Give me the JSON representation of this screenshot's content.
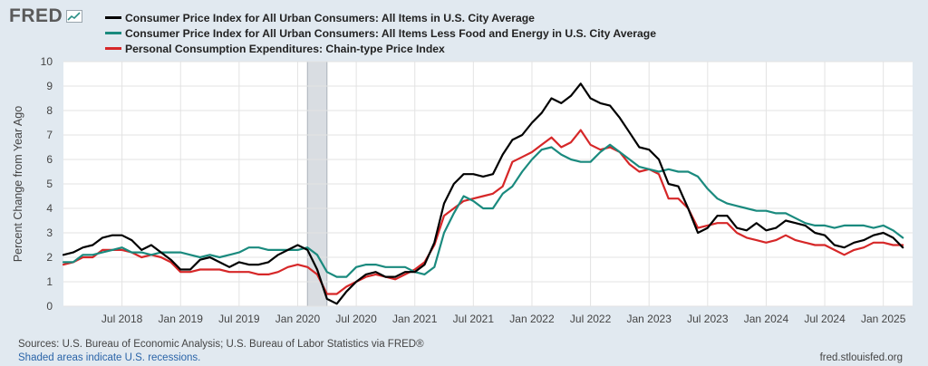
{
  "brand": {
    "logo_text": "FRED"
  },
  "chart_data": {
    "type": "line",
    "ylabel": "Percent Change from Year Ago",
    "ylim": [
      0,
      10
    ],
    "yticks": [
      0,
      1,
      2,
      3,
      4,
      5,
      6,
      7,
      8,
      9,
      10
    ],
    "xlim": [
      "2018-01",
      "2025-04"
    ],
    "xticks": [
      {
        "date": "2018-07",
        "label": "Jul 2018"
      },
      {
        "date": "2019-01",
        "label": "Jan 2019"
      },
      {
        "date": "2019-07",
        "label": "Jul 2019"
      },
      {
        "date": "2020-01",
        "label": "Jan 2020"
      },
      {
        "date": "2020-07",
        "label": "Jul 2020"
      },
      {
        "date": "2021-01",
        "label": "Jan 2021"
      },
      {
        "date": "2021-07",
        "label": "Jul 2021"
      },
      {
        "date": "2022-01",
        "label": "Jan 2022"
      },
      {
        "date": "2022-07",
        "label": "Jul 2022"
      },
      {
        "date": "2023-01",
        "label": "Jan 2023"
      },
      {
        "date": "2023-07",
        "label": "Jul 2023"
      },
      {
        "date": "2024-01",
        "label": "Jan 2024"
      },
      {
        "date": "2024-07",
        "label": "Jul 2024"
      },
      {
        "date": "2025-01",
        "label": "Jan 2025"
      }
    ],
    "grid": true,
    "legend_position": "top",
    "recession": {
      "start": "2020-02",
      "end": "2020-04"
    },
    "series": [
      {
        "name": "Consumer Price Index for All Urban Consumers: All Items in U.S. City Average",
        "color": "#000000",
        "start": "2018-01",
        "values": [
          2.1,
          2.2,
          2.4,
          2.5,
          2.8,
          2.9,
          2.9,
          2.7,
          2.3,
          2.5,
          2.2,
          1.9,
          1.5,
          1.5,
          1.9,
          2.0,
          1.8,
          1.6,
          1.8,
          1.7,
          1.7,
          1.8,
          2.1,
          2.3,
          2.5,
          2.3,
          1.5,
          0.3,
          0.1,
          0.6,
          1.0,
          1.3,
          1.4,
          1.2,
          1.2,
          1.4,
          1.4,
          1.7,
          2.6,
          4.2,
          5.0,
          5.4,
          5.4,
          5.3,
          5.4,
          6.2,
          6.8,
          7.0,
          7.5,
          7.9,
          8.5,
          8.3,
          8.6,
          9.1,
          8.5,
          8.3,
          8.2,
          7.7,
          7.1,
          6.5,
          6.4,
          6.0,
          5.0,
          4.9,
          4.0,
          3.0,
          3.2,
          3.7,
          3.7,
          3.2,
          3.1,
          3.4,
          3.1,
          3.2,
          3.5,
          3.4,
          3.3,
          3.0,
          2.9,
          2.5,
          2.4,
          2.6,
          2.7,
          2.9,
          3.0,
          2.8,
          2.4
        ]
      },
      {
        "name": "Consumer Price Index for All Urban Consumers: All Items Less Food and Energy in U.S. City Average",
        "color": "#1a8a7e",
        "start": "2018-01",
        "values": [
          1.8,
          1.8,
          2.1,
          2.1,
          2.2,
          2.3,
          2.4,
          2.2,
          2.2,
          2.1,
          2.2,
          2.2,
          2.2,
          2.1,
          2.0,
          2.1,
          2.0,
          2.1,
          2.2,
          2.4,
          2.4,
          2.3,
          2.3,
          2.3,
          2.3,
          2.4,
          2.1,
          1.4,
          1.2,
          1.2,
          1.6,
          1.7,
          1.7,
          1.6,
          1.6,
          1.6,
          1.4,
          1.3,
          1.6,
          3.0,
          3.8,
          4.5,
          4.3,
          4.0,
          4.0,
          4.6,
          4.9,
          5.5,
          6.0,
          6.4,
          6.5,
          6.2,
          6.0,
          5.9,
          5.9,
          6.3,
          6.6,
          6.3,
          6.0,
          5.7,
          5.6,
          5.5,
          5.6,
          5.5,
          5.5,
          5.3,
          4.8,
          4.4,
          4.2,
          4.1,
          4.0,
          3.9,
          3.9,
          3.8,
          3.8,
          3.6,
          3.4,
          3.3,
          3.3,
          3.2,
          3.3,
          3.3,
          3.3,
          3.2,
          3.3,
          3.1,
          2.8
        ]
      },
      {
        "name": "Personal Consumption Expenditures: Chain-type Price Index",
        "color": "#d62728",
        "start": "2018-01",
        "values": [
          1.7,
          1.8,
          2.0,
          2.0,
          2.3,
          2.3,
          2.3,
          2.2,
          2.0,
          2.1,
          2.0,
          1.8,
          1.4,
          1.4,
          1.5,
          1.5,
          1.5,
          1.4,
          1.4,
          1.4,
          1.3,
          1.3,
          1.4,
          1.6,
          1.7,
          1.6,
          1.3,
          0.5,
          0.5,
          0.8,
          1.0,
          1.2,
          1.3,
          1.2,
          1.1,
          1.3,
          1.5,
          1.8,
          2.5,
          3.7,
          4.0,
          4.3,
          4.4,
          4.5,
          4.6,
          4.9,
          5.9,
          6.1,
          6.3,
          6.6,
          6.9,
          6.5,
          6.7,
          7.2,
          6.6,
          6.4,
          6.5,
          6.3,
          5.8,
          5.5,
          5.6,
          5.4,
          4.4,
          4.4,
          4.0,
          3.2,
          3.3,
          3.4,
          3.4,
          3.0,
          2.8,
          2.7,
          2.6,
          2.7,
          2.9,
          2.7,
          2.6,
          2.5,
          2.5,
          2.3,
          2.1,
          2.3,
          2.4,
          2.6,
          2.6,
          2.5,
          2.5
        ]
      }
    ]
  },
  "footer": {
    "sources": "Sources: U.S. Bureau of Economic Analysis; U.S. Bureau of Labor Statistics via FRED®",
    "recession_note": "Shaded areas indicate U.S. recessions.",
    "url": "fred.stlouisfed.org"
  }
}
